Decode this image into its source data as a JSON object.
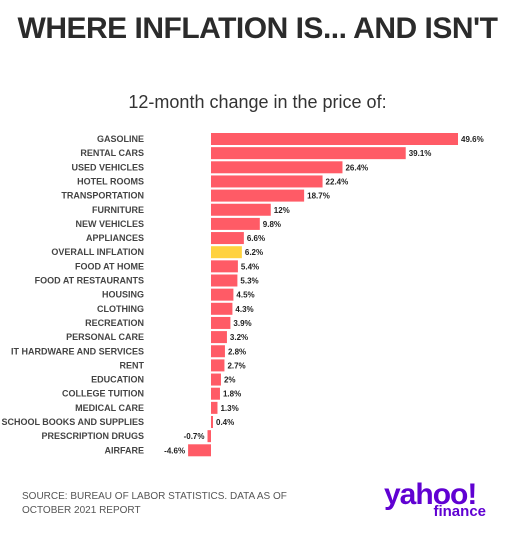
{
  "header": {
    "title": "WHERE INFLATION IS... AND ISN'T",
    "subtitle": "12-month change in the price of:"
  },
  "colors": {
    "bar": "#ff5b66",
    "highlight": "#ffd23f",
    "brand": "#6001d2"
  },
  "chart_data": {
    "type": "bar",
    "orientation": "horizontal",
    "title": "WHERE INFLATION IS... AND ISN'T",
    "subtitle": "12-month change in the price of:",
    "categories": [
      "GASOLINE",
      "RENTAL CARS",
      "USED VEHICLES",
      "HOTEL ROOMS",
      "TRANSPORTATION",
      "FURNITURE",
      "NEW VEHICLES",
      "APPLIANCES",
      "OVERALL INFLATION",
      "FOOD AT HOME",
      "FOOD AT RESTAURANTS",
      "HOUSING",
      "CLOTHING",
      "RECREATION",
      "PERSONAL CARE",
      "IT HARDWARE AND SERVICES",
      "RENT",
      "EDUCATION",
      "COLLEGE TUITION",
      "MEDICAL CARE",
      "SCHOOL BOOKS AND SUPPLIES",
      "PRESCRIPTION DRUGS",
      "AIRFARE"
    ],
    "values": [
      49.6,
      39.1,
      26.4,
      22.4,
      18.7,
      12,
      9.8,
      6.6,
      6.2,
      5.4,
      5.3,
      4.5,
      4.3,
      3.9,
      3.2,
      2.8,
      2.7,
      2,
      1.8,
      1.3,
      0.4,
      -0.7,
      -4.6
    ],
    "value_labels": [
      "49.6%",
      "39.1%",
      "26.4%",
      "22.4%",
      "18.7%",
      "12%",
      "9.8%",
      "6.6%",
      "6.2%",
      "5.4%",
      "5.3%",
      "4.5%",
      "4.3%",
      "3.9%",
      "3.2%",
      "2.8%",
      "2.7%",
      "2%",
      "1.8%",
      "1.3%",
      "0.4%",
      "-0.7%",
      "-4.6%"
    ],
    "highlighted_category": "OVERALL INFLATION",
    "xlabel": "",
    "ylabel": "",
    "grid": false,
    "legend": "none"
  },
  "footer": {
    "source": "SOURCE: BUREAU OF LABOR STATISTICS. DATA AS OF OCTOBER 2021 REPORT",
    "logo_main": "yahoo!",
    "logo_sub": "finance"
  }
}
